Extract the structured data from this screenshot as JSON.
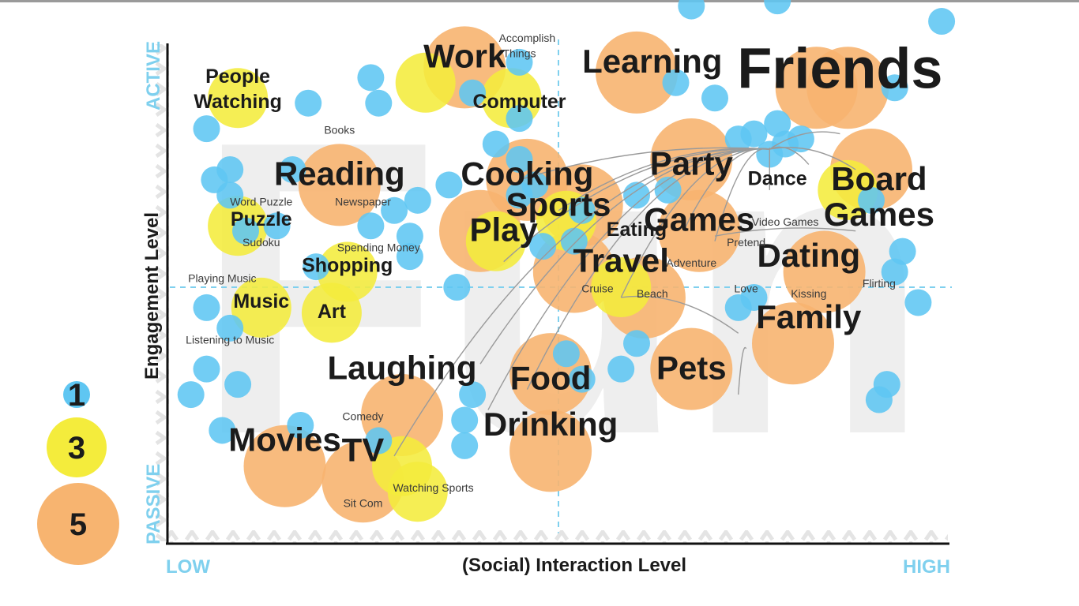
{
  "chart_data": {
    "type": "scatter",
    "xlabel": "(Social) Interaction Level",
    "ylabel": "Engagement Level",
    "x_low_label": "LOW",
    "x_high_label": "HIGH",
    "y_low_label": "PASSIVE",
    "y_high_label": "ACTIVE",
    "background_word": "Fun",
    "xlim": [
      0,
      10
    ],
    "ylim": [
      0,
      10
    ],
    "center": [
      5,
      5
    ],
    "legend": {
      "placement": "left",
      "entries": [
        {
          "label": "1",
          "value": 1,
          "color": "#5fc6f2"
        },
        {
          "label": "3",
          "value": 3,
          "color": "#f4ec3c"
        },
        {
          "label": "5",
          "value": 5,
          "color": "#f7b470"
        }
      ]
    },
    "colors": {
      "1": "#5fc6f2",
      "3": "#f4ec3c",
      "5": "#f7b470"
    },
    "bubbles": [
      {
        "x": 2.2,
        "y": 7.0,
        "value": 5
      },
      {
        "x": 3.0,
        "y": 2.5,
        "value": 5
      },
      {
        "x": 1.5,
        "y": 1.5,
        "value": 5
      },
      {
        "x": 2.5,
        "y": 1.2,
        "value": 5
      },
      {
        "x": 3.8,
        "y": 9.3,
        "value": 5
      },
      {
        "x": 4.6,
        "y": 7.1,
        "value": 5
      },
      {
        "x": 4.0,
        "y": 6.1,
        "value": 5
      },
      {
        "x": 5.3,
        "y": 6.6,
        "value": 5
      },
      {
        "x": 5.2,
        "y": 5.3,
        "value": 5
      },
      {
        "x": 6.1,
        "y": 4.8,
        "value": 5
      },
      {
        "x": 4.9,
        "y": 3.3,
        "value": 5
      },
      {
        "x": 4.9,
        "y": 1.8,
        "value": 5
      },
      {
        "x": 6.0,
        "y": 9.2,
        "value": 5
      },
      {
        "x": 6.7,
        "y": 7.5,
        "value": 5
      },
      {
        "x": 6.8,
        "y": 6.1,
        "value": 5
      },
      {
        "x": 6.7,
        "y": 3.4,
        "value": 5
      },
      {
        "x": 8.4,
        "y": 5.3,
        "value": 5
      },
      {
        "x": 8.0,
        "y": 3.9,
        "value": 5
      },
      {
        "x": 8.3,
        "y": 8.9,
        "value": 5
      },
      {
        "x": 8.7,
        "y": 8.9,
        "value": 5
      },
      {
        "x": 9.0,
        "y": 7.3,
        "value": 5
      },
      {
        "x": 0.9,
        "y": 8.7,
        "value": 3
      },
      {
        "x": 0.9,
        "y": 6.2,
        "value": 3
      },
      {
        "x": 1.2,
        "y": 4.6,
        "value": 3
      },
      {
        "x": 2.1,
        "y": 4.5,
        "value": 3
      },
      {
        "x": 2.3,
        "y": 5.3,
        "value": 3
      },
      {
        "x": 3.3,
        "y": 9.0,
        "value": 3
      },
      {
        "x": 4.4,
        "y": 8.7,
        "value": 3
      },
      {
        "x": 4.2,
        "y": 5.9,
        "value": 3
      },
      {
        "x": 5.1,
        "y": 6.3,
        "value": 3
      },
      {
        "x": 5.8,
        "y": 5.0,
        "value": 3
      },
      {
        "x": 3.0,
        "y": 1.5,
        "value": 3
      },
      {
        "x": 3.2,
        "y": 1.0,
        "value": 3
      },
      {
        "x": 8.7,
        "y": 6.9,
        "value": 3
      },
      {
        "x": 0.5,
        "y": 8.1,
        "value": 1
      },
      {
        "x": 1.8,
        "y": 8.6,
        "value": 1
      },
      {
        "x": 2.6,
        "y": 9.1,
        "value": 1
      },
      {
        "x": 2.7,
        "y": 8.6,
        "value": 1
      },
      {
        "x": 1.6,
        "y": 7.3,
        "value": 1
      },
      {
        "x": 0.6,
        "y": 7.1,
        "value": 1
      },
      {
        "x": 0.8,
        "y": 7.3,
        "value": 1
      },
      {
        "x": 0.8,
        "y": 6.8,
        "value": 1
      },
      {
        "x": 1.0,
        "y": 6.1,
        "value": 1
      },
      {
        "x": 1.4,
        "y": 6.2,
        "value": 1
      },
      {
        "x": 1.9,
        "y": 5.4,
        "value": 1
      },
      {
        "x": 0.5,
        "y": 4.6,
        "value": 1
      },
      {
        "x": 0.8,
        "y": 4.2,
        "value": 1
      },
      {
        "x": 0.5,
        "y": 3.4,
        "value": 1
      },
      {
        "x": 0.9,
        "y": 3.1,
        "value": 1
      },
      {
        "x": 0.3,
        "y": 2.9,
        "value": 1
      },
      {
        "x": 0.7,
        "y": 2.2,
        "value": 1
      },
      {
        "x": 1.7,
        "y": 2.3,
        "value": 1
      },
      {
        "x": 2.7,
        "y": 2.0,
        "value": 1
      },
      {
        "x": 3.1,
        "y": 6.0,
        "value": 1
      },
      {
        "x": 2.6,
        "y": 6.2,
        "value": 1
      },
      {
        "x": 2.9,
        "y": 6.5,
        "value": 1
      },
      {
        "x": 3.2,
        "y": 6.7,
        "value": 1
      },
      {
        "x": 3.1,
        "y": 5.6,
        "value": 1
      },
      {
        "x": 3.6,
        "y": 7.0,
        "value": 1
      },
      {
        "x": 3.7,
        "y": 5.0,
        "value": 1
      },
      {
        "x": 3.9,
        "y": 2.9,
        "value": 1
      },
      {
        "x": 3.8,
        "y": 2.4,
        "value": 1
      },
      {
        "x": 3.8,
        "y": 1.9,
        "value": 1
      },
      {
        "x": 3.9,
        "y": 8.8,
        "value": 1
      },
      {
        "x": 4.5,
        "y": 9.4,
        "value": 1
      },
      {
        "x": 4.5,
        "y": 8.3,
        "value": 1
      },
      {
        "x": 4.2,
        "y": 7.8,
        "value": 1
      },
      {
        "x": 4.5,
        "y": 7.5,
        "value": 1
      },
      {
        "x": 4.5,
        "y": 6.8,
        "value": 1
      },
      {
        "x": 4.7,
        "y": 7.0,
        "value": 1
      },
      {
        "x": 4.8,
        "y": 5.8,
        "value": 1
      },
      {
        "x": 5.3,
        "y": 6.5,
        "value": 1
      },
      {
        "x": 5.2,
        "y": 5.9,
        "value": 1
      },
      {
        "x": 5.1,
        "y": 3.7,
        "value": 1
      },
      {
        "x": 5.3,
        "y": 3.2,
        "value": 1
      },
      {
        "x": 6.0,
        "y": 6.8,
        "value": 1
      },
      {
        "x": 6.4,
        "y": 6.9,
        "value": 1
      },
      {
        "x": 6.5,
        "y": 9.0,
        "value": 1
      },
      {
        "x": 6.0,
        "y": 3.9,
        "value": 1
      },
      {
        "x": 5.8,
        "y": 3.4,
        "value": 1
      },
      {
        "x": 6.7,
        "y": 10.5,
        "value": 1
      },
      {
        "x": 7.0,
        "y": 8.7,
        "value": 1
      },
      {
        "x": 7.3,
        "y": 7.9,
        "value": 1
      },
      {
        "x": 7.5,
        "y": 8.0,
        "value": 1
      },
      {
        "x": 7.7,
        "y": 7.6,
        "value": 1
      },
      {
        "x": 7.8,
        "y": 8.2,
        "value": 1
      },
      {
        "x": 7.9,
        "y": 7.8,
        "value": 1
      },
      {
        "x": 7.8,
        "y": 10.6,
        "value": 1
      },
      {
        "x": 8.1,
        "y": 7.9,
        "value": 1
      },
      {
        "x": 9.3,
        "y": 8.9,
        "value": 1
      },
      {
        "x": 9.0,
        "y": 6.7,
        "value": 1
      },
      {
        "x": 9.3,
        "y": 5.3,
        "value": 1
      },
      {
        "x": 9.4,
        "y": 5.7,
        "value": 1
      },
      {
        "x": 9.6,
        "y": 4.7,
        "value": 1
      },
      {
        "x": 7.3,
        "y": 4.6,
        "value": 1
      },
      {
        "x": 7.5,
        "y": 4.8,
        "value": 1
      },
      {
        "x": 9.2,
        "y": 3.1,
        "value": 1
      },
      {
        "x": 9.1,
        "y": 2.8,
        "value": 1
      },
      {
        "x": 9.9,
        "y": 10.2,
        "value": 1
      }
    ],
    "labels": [
      {
        "text": "Friends",
        "x": 8.6,
        "y": 8.9,
        "size": 5
      },
      {
        "text": "Learning",
        "x": 6.2,
        "y": 9.2,
        "size": 4
      },
      {
        "text": "Work",
        "x": 3.8,
        "y": 9.3,
        "size": 4
      },
      {
        "text": "Reading",
        "x": 2.2,
        "y": 7.0,
        "size": 4
      },
      {
        "text": "Cooking",
        "x": 4.6,
        "y": 7.0,
        "size": 4
      },
      {
        "text": "Sports",
        "x": 5.0,
        "y": 6.4,
        "size": 4
      },
      {
        "text": "Play",
        "x": 4.3,
        "y": 5.9,
        "size": 4
      },
      {
        "text": "Party",
        "x": 6.7,
        "y": 7.2,
        "size": 4
      },
      {
        "text": "Games",
        "x": 6.8,
        "y": 6.1,
        "size": 4
      },
      {
        "text": "Board",
        "x": 9.1,
        "y": 6.9,
        "size": 4
      },
      {
        "text": "Games",
        "x": 9.1,
        "y": 6.2,
        "size": 4
      },
      {
        "text": "Travel",
        "x": 5.8,
        "y": 5.3,
        "size": 4
      },
      {
        "text": "Dating",
        "x": 8.2,
        "y": 5.4,
        "size": 4
      },
      {
        "text": "Family",
        "x": 8.2,
        "y": 4.2,
        "size": 4
      },
      {
        "text": "Pets",
        "x": 6.7,
        "y": 3.2,
        "size": 4
      },
      {
        "text": "Laughing",
        "x": 3.0,
        "y": 3.2,
        "size": 4
      },
      {
        "text": "Food",
        "x": 4.9,
        "y": 3.0,
        "size": 4
      },
      {
        "text": "Drinking",
        "x": 4.9,
        "y": 2.1,
        "size": 4
      },
      {
        "text": "Movies",
        "x": 1.5,
        "y": 1.8,
        "size": 4
      },
      {
        "text": "TV",
        "x": 2.5,
        "y": 1.6,
        "size": 4
      },
      {
        "text": "People",
        "x": 0.9,
        "y": 9.0,
        "size": 2
      },
      {
        "text": "Watching",
        "x": 0.9,
        "y": 8.5,
        "size": 2
      },
      {
        "text": "Puzzle",
        "x": 1.2,
        "y": 6.2,
        "size": 2
      },
      {
        "text": "Shopping",
        "x": 2.3,
        "y": 5.3,
        "size": 2
      },
      {
        "text": "Music",
        "x": 1.2,
        "y": 4.6,
        "size": 2
      },
      {
        "text": "Art",
        "x": 2.1,
        "y": 4.4,
        "size": 2
      },
      {
        "text": "Computer",
        "x": 4.5,
        "y": 8.5,
        "size": 2
      },
      {
        "text": "Eating",
        "x": 6.0,
        "y": 6.0,
        "size": 2
      },
      {
        "text": "Dance",
        "x": 7.8,
        "y": 7.0,
        "size": 2
      },
      {
        "text": "Accomplish",
        "x": 4.6,
        "y": 9.8,
        "size": 1
      },
      {
        "text": "Things",
        "x": 4.5,
        "y": 9.5,
        "size": 1
      },
      {
        "text": "Books",
        "x": 2.2,
        "y": 8.0,
        "size": 1
      },
      {
        "text": "Newspaper",
        "x": 2.5,
        "y": 6.6,
        "size": 1
      },
      {
        "text": "Word Puzzle",
        "x": 1.2,
        "y": 6.6,
        "size": 1
      },
      {
        "text": "Sudoku",
        "x": 1.2,
        "y": 5.8,
        "size": 1
      },
      {
        "text": "Spending Money",
        "x": 2.7,
        "y": 5.7,
        "size": 1
      },
      {
        "text": "Playing Music",
        "x": 0.7,
        "y": 5.1,
        "size": 1
      },
      {
        "text": "Listening to Music",
        "x": 0.8,
        "y": 3.9,
        "size": 1
      },
      {
        "text": "Comedy",
        "x": 2.5,
        "y": 2.4,
        "size": 1
      },
      {
        "text": "Sit Com",
        "x": 2.5,
        "y": 0.7,
        "size": 1
      },
      {
        "text": "Watching Sports",
        "x": 3.4,
        "y": 1.0,
        "size": 1
      },
      {
        "text": "Video Games",
        "x": 7.9,
        "y": 6.2,
        "size": 1
      },
      {
        "text": "Pretend",
        "x": 7.4,
        "y": 5.8,
        "size": 1
      },
      {
        "text": "Adventure",
        "x": 6.7,
        "y": 5.4,
        "size": 1
      },
      {
        "text": "Cruise",
        "x": 5.5,
        "y": 4.9,
        "size": 1
      },
      {
        "text": "Beach",
        "x": 6.2,
        "y": 4.8,
        "size": 1
      },
      {
        "text": "Love",
        "x": 7.4,
        "y": 4.9,
        "size": 1
      },
      {
        "text": "Kissing",
        "x": 8.2,
        "y": 4.8,
        "size": 1
      },
      {
        "text": "Flirting",
        "x": 9.1,
        "y": 5.0,
        "size": 1
      }
    ],
    "connections": [
      {
        "from": [
          7.7,
          7.7
        ],
        "to": [
          4.5,
          7.1
        ]
      },
      {
        "from": [
          7.7,
          7.7
        ],
        "to": [
          5.0,
          6.5
        ]
      },
      {
        "from": [
          7.7,
          7.7
        ],
        "to": [
          4.3,
          5.5
        ]
      },
      {
        "from": [
          7.7,
          7.7
        ],
        "to": [
          4.0,
          3.5
        ]
      },
      {
        "from": [
          7.7,
          7.7
        ],
        "to": [
          2.9,
          1.7
        ]
      },
      {
        "from": [
          7.7,
          7.7
        ],
        "to": [
          4.1,
          2.6
        ]
      },
      {
        "from": [
          7.7,
          7.7
        ],
        "to": [
          4.6,
          3.0
        ]
      },
      {
        "from": [
          7.7,
          7.7
        ],
        "to": [
          5.8,
          4.8
        ]
      },
      {
        "from": [
          7.7,
          7.7
        ],
        "to": [
          6.6,
          6.1
        ]
      },
      {
        "from": [
          7.7,
          7.7
        ],
        "to": [
          7.0,
          5.9
        ]
      },
      {
        "from": [
          7.7,
          7.7
        ],
        "to": [
          7.7,
          6.9
        ]
      },
      {
        "from": [
          7.7,
          7.7
        ],
        "to": [
          8.2,
          7.4
        ]
      },
      {
        "from": [
          7.7,
          7.7
        ],
        "to": [
          8.8,
          7.3
        ]
      },
      {
        "from": [
          7.7,
          7.7
        ],
        "to": [
          8.6,
          8.0
        ]
      },
      {
        "from": [
          5.8,
          4.8
        ],
        "to": [
          7.3,
          4.1
        ]
      },
      {
        "from": [
          7.0,
          6.0
        ],
        "to": [
          8.8,
          6.1
        ]
      },
      {
        "from": [
          7.4,
          3.8
        ],
        "to": [
          7.3,
          2.9
        ]
      }
    ]
  }
}
